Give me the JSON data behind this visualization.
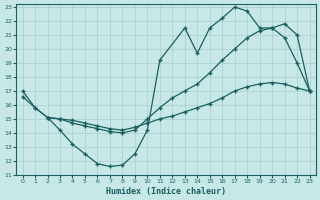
{
  "xlabel": "Humidex (Indice chaleur)",
  "bg_color": "#c8e8e8",
  "grid_color": "#a8cece",
  "line_color": "#1a6060",
  "xlim": [
    -0.5,
    23.5
  ],
  "ylim": [
    11,
    23.2
  ],
  "xticks": [
    0,
    1,
    2,
    3,
    4,
    5,
    6,
    7,
    8,
    9,
    10,
    11,
    12,
    13,
    14,
    15,
    16,
    17,
    18,
    19,
    20,
    21,
    22,
    23
  ],
  "yticks": [
    11,
    12,
    13,
    14,
    15,
    16,
    17,
    18,
    19,
    20,
    21,
    22,
    23
  ],
  "line1_x": [
    0,
    1,
    2,
    3,
    4,
    5,
    6,
    7,
    8,
    9,
    10,
    11,
    13,
    14,
    15,
    16,
    17,
    18,
    19,
    20,
    21,
    22,
    23
  ],
  "line1_y": [
    17.0,
    15.8,
    15.1,
    14.2,
    13.2,
    12.5,
    11.8,
    11.6,
    11.7,
    12.5,
    14.2,
    19.2,
    21.5,
    19.7,
    21.5,
    22.2,
    23.0,
    22.7,
    21.5,
    21.5,
    20.8,
    19.0,
    17.0
  ],
  "line2_x": [
    0,
    1,
    2,
    3,
    4,
    5,
    6,
    7,
    8,
    9,
    10,
    11,
    12,
    13,
    14,
    15,
    16,
    17,
    18,
    19,
    20,
    21,
    22,
    23
  ],
  "line2_y": [
    16.6,
    15.8,
    15.1,
    15.0,
    14.9,
    14.7,
    14.5,
    14.3,
    14.2,
    14.4,
    14.7,
    15.0,
    15.2,
    15.5,
    15.8,
    16.1,
    16.5,
    17.0,
    17.3,
    17.5,
    17.6,
    17.5,
    17.2,
    17.0
  ],
  "line3_x": [
    2,
    3,
    4,
    5,
    6,
    7,
    8,
    9,
    10,
    11,
    12,
    13,
    14,
    15,
    16,
    17,
    18,
    19,
    20,
    21,
    22,
    23
  ],
  "line3_y": [
    15.1,
    15.0,
    14.7,
    14.5,
    14.3,
    14.1,
    14.0,
    14.2,
    15.0,
    15.8,
    16.5,
    17.0,
    17.5,
    18.3,
    19.2,
    20.0,
    20.8,
    21.3,
    21.5,
    21.8,
    21.0,
    17.0
  ]
}
